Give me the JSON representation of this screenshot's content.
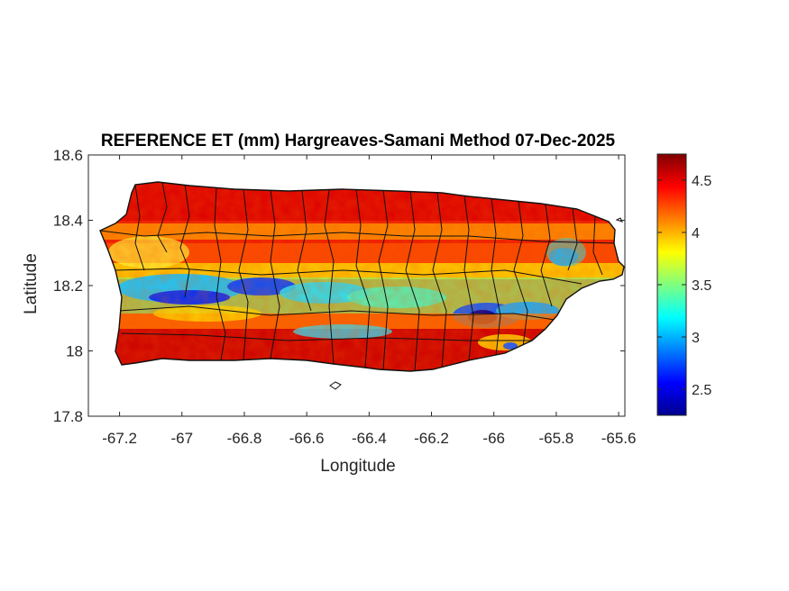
{
  "chart_data": {
    "type": "heatmap",
    "title": "REFERENCE ET (mm) Hargreaves-Samani Method  07-Dec-2025",
    "xlabel": "Longitude",
    "ylabel": "Latitude",
    "xlim": [
      -67.3,
      -65.58
    ],
    "ylim": [
      17.8,
      18.6
    ],
    "x_ticks": [
      -67.2,
      -67,
      -66.8,
      -66.6,
      -66.4,
      -66.2,
      -66,
      -65.8,
      -65.6
    ],
    "x_tick_labels": [
      "-67.2",
      "-67",
      "-66.8",
      "-66.6",
      "-66.4",
      "-66.2",
      "-66",
      "-65.8",
      "-65.6"
    ],
    "y_ticks": [
      17.8,
      18,
      18.2,
      18.4,
      18.6
    ],
    "y_tick_labels": [
      "17.8",
      "18",
      "18.2",
      "18.4",
      "18.6"
    ],
    "colorbar": {
      "colormap": "jet",
      "range": [
        2.25,
        4.75
      ],
      "ticks": [
        2.5,
        3,
        3.5,
        4,
        4.5
      ],
      "tick_labels": [
        "2.5",
        "3",
        "3.5",
        "4",
        "4.5"
      ]
    },
    "grid": false,
    "legend": "none"
  }
}
